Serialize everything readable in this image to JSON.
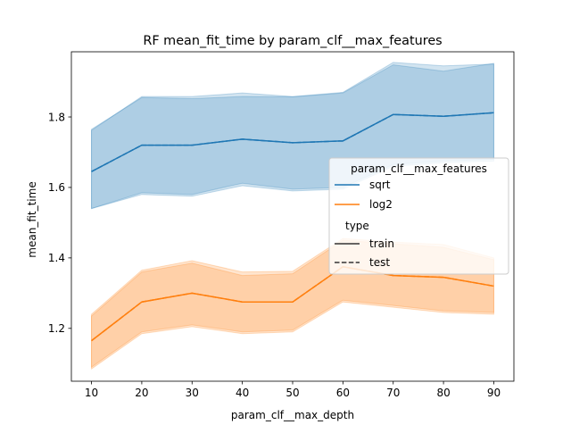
{
  "chart_data": {
    "type": "line",
    "title": "RF mean_fit_time by param_clf__max_features",
    "xlabel": "param_clf__max_depth",
    "ylabel": "mean_fit_time",
    "xlim": [
      6,
      94
    ],
    "ylim": [
      1.05,
      1.985
    ],
    "x": [
      10,
      20,
      30,
      40,
      50,
      60,
      70,
      80,
      90
    ],
    "xticks": [
      10,
      20,
      30,
      40,
      50,
      60,
      70,
      80,
      90
    ],
    "yticks": [
      1.2,
      1.4,
      1.6,
      1.8
    ],
    "grid": false,
    "legend": {
      "placement": "center-right",
      "title": "param_clf__max_features",
      "hue_entries": [
        {
          "label": "sqrt",
          "color": "#1f77b4"
        },
        {
          "label": "log2",
          "color": "#ff7f0e"
        }
      ],
      "style_title": "type",
      "style_entries": [
        {
          "label": "train",
          "dash": "solid"
        },
        {
          "label": "test",
          "dash": "dashed"
        }
      ]
    },
    "series": [
      {
        "name": "sqrt",
        "type": "train",
        "color": "#1f77b4",
        "dash": "solid",
        "values": [
          1.645,
          1.72,
          1.72,
          1.737,
          1.727,
          1.732,
          1.807,
          1.802,
          1.812
        ],
        "ci_low": [
          1.54,
          1.58,
          1.575,
          1.605,
          1.59,
          1.595,
          1.66,
          1.67,
          1.675
        ],
        "ci_high": [
          1.765,
          1.855,
          1.852,
          1.858,
          1.857,
          1.868,
          1.948,
          1.93,
          1.952
        ]
      },
      {
        "name": "sqrt",
        "type": "test",
        "color": "#1f77b4",
        "dash": "dashed",
        "values": [
          1.645,
          1.72,
          1.72,
          1.737,
          1.727,
          1.732,
          1.807,
          1.802,
          1.812
        ],
        "ci_low": [
          1.54,
          1.585,
          1.58,
          1.612,
          1.595,
          1.6,
          1.665,
          1.675,
          1.68
        ],
        "ci_high": [
          1.762,
          1.858,
          1.858,
          1.868,
          1.858,
          1.87,
          1.955,
          1.945,
          1.95
        ]
      },
      {
        "name": "log2",
        "type": "train",
        "color": "#ff7f0e",
        "dash": "solid",
        "values": [
          1.165,
          1.275,
          1.3,
          1.275,
          1.275,
          1.375,
          1.35,
          1.345,
          1.32
        ],
        "ci_low": [
          1.085,
          1.185,
          1.205,
          1.185,
          1.19,
          1.275,
          1.26,
          1.245,
          1.24
        ],
        "ci_high": [
          1.235,
          1.36,
          1.385,
          1.35,
          1.355,
          1.45,
          1.44,
          1.43,
          1.395
        ]
      },
      {
        "name": "log2",
        "type": "test",
        "color": "#ff7f0e",
        "dash": "dashed",
        "values": [
          1.165,
          1.275,
          1.3,
          1.275,
          1.275,
          1.375,
          1.35,
          1.345,
          1.32
        ],
        "ci_low": [
          1.09,
          1.19,
          1.21,
          1.19,
          1.195,
          1.28,
          1.265,
          1.25,
          1.245
        ],
        "ci_high": [
          1.24,
          1.365,
          1.392,
          1.36,
          1.362,
          1.455,
          1.445,
          1.438,
          1.4
        ]
      }
    ]
  }
}
